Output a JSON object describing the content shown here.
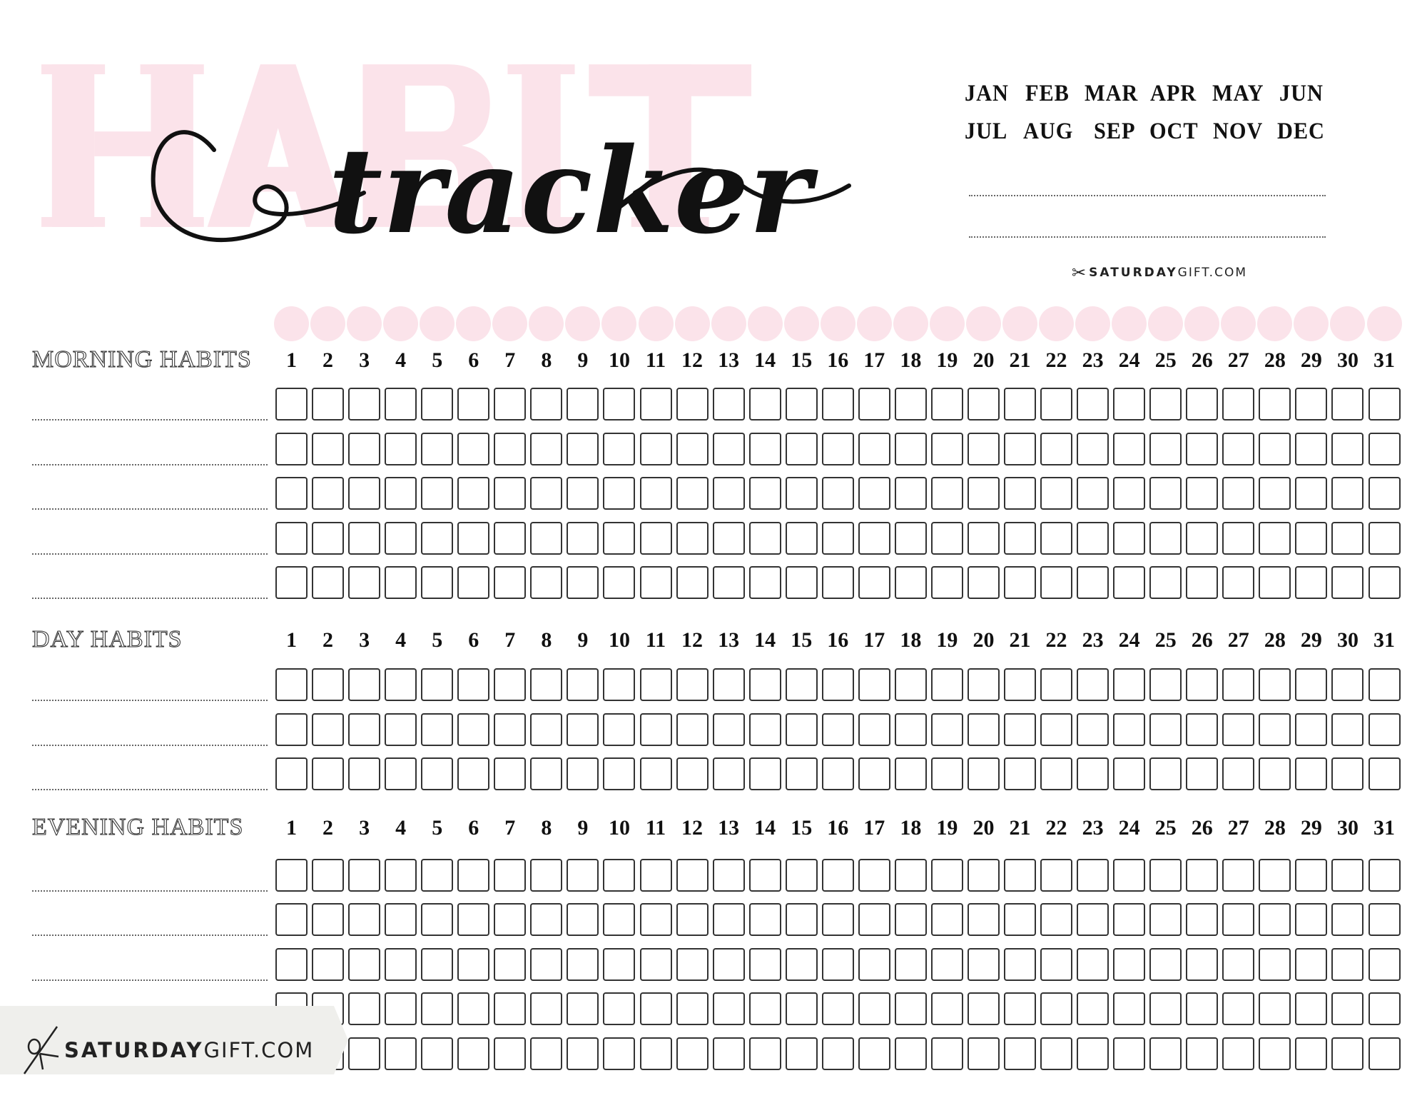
{
  "watermark": {
    "text": "HABIT",
    "color": "#fbe3ea"
  },
  "title": {
    "script_text": "tracker"
  },
  "months": {
    "row1": [
      "JAN",
      "FEB",
      "MAR",
      "APR",
      "MAY",
      "JUN"
    ],
    "row2": [
      "JUL",
      "AUG",
      "SEP",
      "OCT",
      "NOV",
      "DEC"
    ]
  },
  "brand": {
    "bold": "SATURDAY",
    "light": "GIFT.COM"
  },
  "colors": {
    "accent_pink": "#fbe3ea",
    "box_border": "#333333",
    "banner_bg": "#efefec"
  },
  "days": [
    "1",
    "2",
    "3",
    "4",
    "5",
    "6",
    "7",
    "8",
    "9",
    "10",
    "11",
    "12",
    "13",
    "14",
    "15",
    "16",
    "17",
    "18",
    "19",
    "20",
    "21",
    "22",
    "23",
    "24",
    "25",
    "26",
    "27",
    "28",
    "29",
    "30",
    "31"
  ],
  "sections": [
    {
      "label": "MORNING HABITS",
      "rows": 5
    },
    {
      "label": "DAY HABITS",
      "rows": 3
    },
    {
      "label": "EVENING HABITS",
      "rows": 5
    }
  ]
}
